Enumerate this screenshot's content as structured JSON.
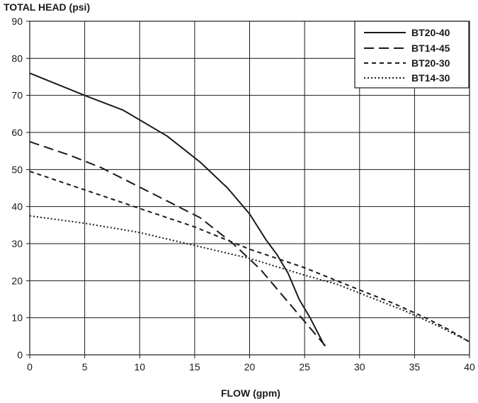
{
  "chart_data": {
    "type": "line",
    "ylabel": "TOTAL HEAD (psi)",
    "xlabel": "FLOW (gpm)",
    "xlim": [
      0,
      40
    ],
    "ylim": [
      0,
      90
    ],
    "xticks": [
      0,
      5,
      10,
      15,
      20,
      25,
      30,
      35,
      40
    ],
    "yticks": [
      0,
      10,
      20,
      30,
      40,
      50,
      60,
      70,
      80,
      90
    ],
    "grid": true,
    "legend_position": "top-right",
    "series": [
      {
        "name": "BT20-40",
        "dash": "solid",
        "x": [
          0,
          5,
          8.5,
          12.5,
          15.5,
          18,
          20,
          21.5,
          22.5,
          23.5,
          24.5,
          25.5,
          26.8
        ],
        "y": [
          76,
          70,
          66,
          59,
          52,
          45,
          38,
          31,
          27,
          22,
          15,
          10,
          2.5
        ]
      },
      {
        "name": "BT14-45",
        "dash": "long-dash",
        "x": [
          0,
          3.5,
          6.5,
          9.5,
          12.5,
          15.5,
          18.5,
          21,
          23,
          25,
          27
        ],
        "y": [
          57.5,
          54,
          50.5,
          46,
          41.5,
          37,
          30,
          23,
          16,
          9,
          2
        ]
      },
      {
        "name": "BT20-30",
        "dash": "short-dash",
        "x": [
          0,
          5,
          10,
          15,
          20,
          25,
          30,
          33,
          36,
          38,
          40
        ],
        "y": [
          49.5,
          44.5,
          39.5,
          34.5,
          28.5,
          23.5,
          17.5,
          14,
          10,
          7,
          3.5
        ]
      },
      {
        "name": "BT14-30",
        "dash": "dotted",
        "x": [
          0,
          5,
          10,
          15,
          20,
          25,
          28,
          31,
          34,
          37,
          40
        ],
        "y": [
          37.5,
          35.5,
          33,
          29.5,
          26,
          21.5,
          19,
          15.5,
          12,
          8,
          3.5
        ]
      }
    ]
  }
}
